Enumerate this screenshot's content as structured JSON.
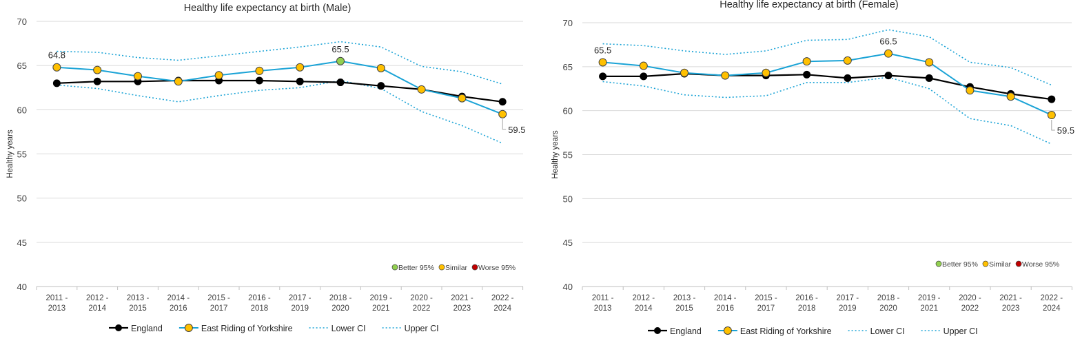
{
  "colors": {
    "england": "#000000",
    "area_line": "#1aa3d6",
    "ci_line": "#1aa3d6",
    "similar": "#ffc000",
    "better": "#92d050",
    "worse": "#c00000",
    "grid": "#d9d9d9",
    "axis": "#bfbfbf"
  },
  "legend": {
    "england": "England",
    "area": "East Riding of Yorkshire",
    "lower_ci": "Lower CI",
    "upper_ci": "Upper CI"
  },
  "significance_legend": {
    "better": "Better 95%",
    "similar": "Similar",
    "worse": "Worse 95%"
  },
  "chart_data": [
    {
      "type": "line",
      "title": "Healthy life expectancy at birth (Male)",
      "ylabel": "Healthy years",
      "xlabel": "",
      "ylim": [
        40,
        70
      ],
      "yticks": [
        40,
        45,
        50,
        55,
        60,
        65,
        70
      ],
      "grid": true,
      "legend_position": "bottom",
      "categories": [
        "2011 - 2013",
        "2012 - 2014",
        "2013 - 2015",
        "2014 - 2016",
        "2015 - 2017",
        "2016 - 2018",
        "2017 - 2019",
        "2018 - 2020",
        "2019 - 2021",
        "2020 - 2022",
        "2021 - 2023",
        "2022 - 2024"
      ],
      "series": [
        {
          "name": "England",
          "values": [
            63.0,
            63.2,
            63.2,
            63.3,
            63.3,
            63.3,
            63.2,
            63.1,
            62.7,
            62.3,
            61.5,
            60.9
          ]
        },
        {
          "name": "East Riding of Yorkshire",
          "values": [
            64.8,
            64.5,
            63.8,
            63.2,
            63.9,
            64.4,
            64.8,
            65.5,
            64.7,
            62.3,
            61.3,
            59.5
          ],
          "significance": [
            "similar",
            "similar",
            "similar",
            "similar",
            "similar",
            "similar",
            "similar",
            "better",
            "similar",
            "similar",
            "similar",
            "similar"
          ]
        },
        {
          "name": "Lower CI",
          "values": [
            62.8,
            62.4,
            61.6,
            60.9,
            61.6,
            62.2,
            62.5,
            63.3,
            62.4,
            59.8,
            58.2,
            56.2
          ]
        },
        {
          "name": "Upper CI",
          "values": [
            66.6,
            66.5,
            65.9,
            65.6,
            66.1,
            66.6,
            67.1,
            67.7,
            67.1,
            64.9,
            64.3,
            62.9
          ]
        }
      ],
      "annotations": [
        {
          "category": "2011 - 2013",
          "text": "64.8"
        },
        {
          "category": "2018 - 2020",
          "text": "65.5"
        },
        {
          "category": "2022 - 2024",
          "text": "59.5"
        }
      ]
    },
    {
      "type": "line",
      "title": "Healthy life expectancy at birth (Female)",
      "ylabel": "Healthy years",
      "xlabel": "",
      "ylim": [
        40,
        70
      ],
      "yticks": [
        40,
        45,
        50,
        55,
        60,
        65,
        70
      ],
      "grid": true,
      "legend_position": "bottom",
      "categories": [
        "2011 - 2013",
        "2012 - 2014",
        "2013 - 2015",
        "2014 - 2016",
        "2015 - 2017",
        "2016 - 2018",
        "2017 - 2019",
        "2018 - 2020",
        "2019 - 2021",
        "2020 - 2022",
        "2021 - 2023",
        "2022 - 2024"
      ],
      "series": [
        {
          "name": "England",
          "values": [
            63.9,
            63.9,
            64.2,
            64.0,
            64.0,
            64.1,
            63.7,
            64.0,
            63.7,
            62.7,
            61.9,
            61.3
          ]
        },
        {
          "name": "East Riding of Yorkshire",
          "values": [
            65.5,
            65.1,
            64.3,
            64.0,
            64.3,
            65.6,
            65.7,
            66.5,
            65.5,
            62.3,
            61.6,
            59.5
          ],
          "significance": [
            "similar",
            "similar",
            "similar",
            "similar",
            "similar",
            "similar",
            "similar",
            "similar",
            "similar",
            "similar",
            "similar",
            "similar"
          ]
        },
        {
          "name": "Lower CI",
          "values": [
            63.3,
            62.8,
            61.8,
            61.5,
            61.7,
            63.2,
            63.2,
            63.8,
            62.5,
            59.1,
            58.3,
            56.2
          ]
        },
        {
          "name": "Upper CI",
          "values": [
            67.6,
            67.4,
            66.8,
            66.4,
            66.8,
            68.0,
            68.1,
            69.2,
            68.4,
            65.5,
            64.9,
            62.9
          ]
        }
      ],
      "annotations": [
        {
          "category": "2011 - 2013",
          "text": "65.5"
        },
        {
          "category": "2018 - 2020",
          "text": "66.5"
        },
        {
          "category": "2022 - 2024",
          "text": "59.5"
        }
      ]
    }
  ]
}
